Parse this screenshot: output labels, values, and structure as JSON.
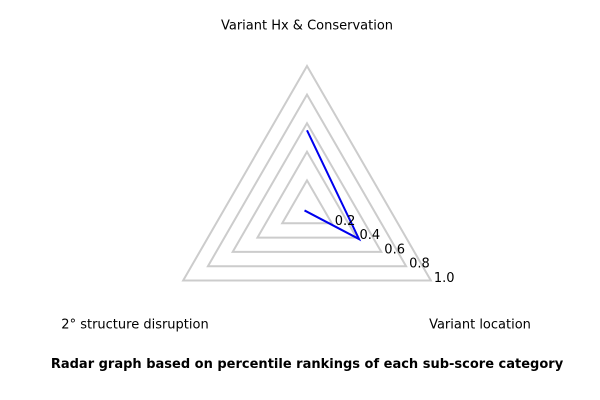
{
  "chart_data": {
    "type": "radar",
    "title": "",
    "caption": "Radar graph based on percentile rankings of each sub-score category",
    "axes": [
      "Variant Hx & Conservation",
      "Variant location",
      "2° structure disruption"
    ],
    "rlim": [
      0,
      1.0
    ],
    "ticks": [
      0.2,
      0.4,
      0.6,
      0.8,
      1.0
    ],
    "tick_labels": [
      "0.2",
      "0.4",
      "0.6",
      "0.8",
      "1.0"
    ],
    "grid": true,
    "legend": "none",
    "series": [
      {
        "values": [
          0.55,
          0.42,
          0.02
        ],
        "color": "#0000ee"
      }
    ],
    "colors": {
      "grid": "#cccccc",
      "text": "#000000"
    }
  }
}
